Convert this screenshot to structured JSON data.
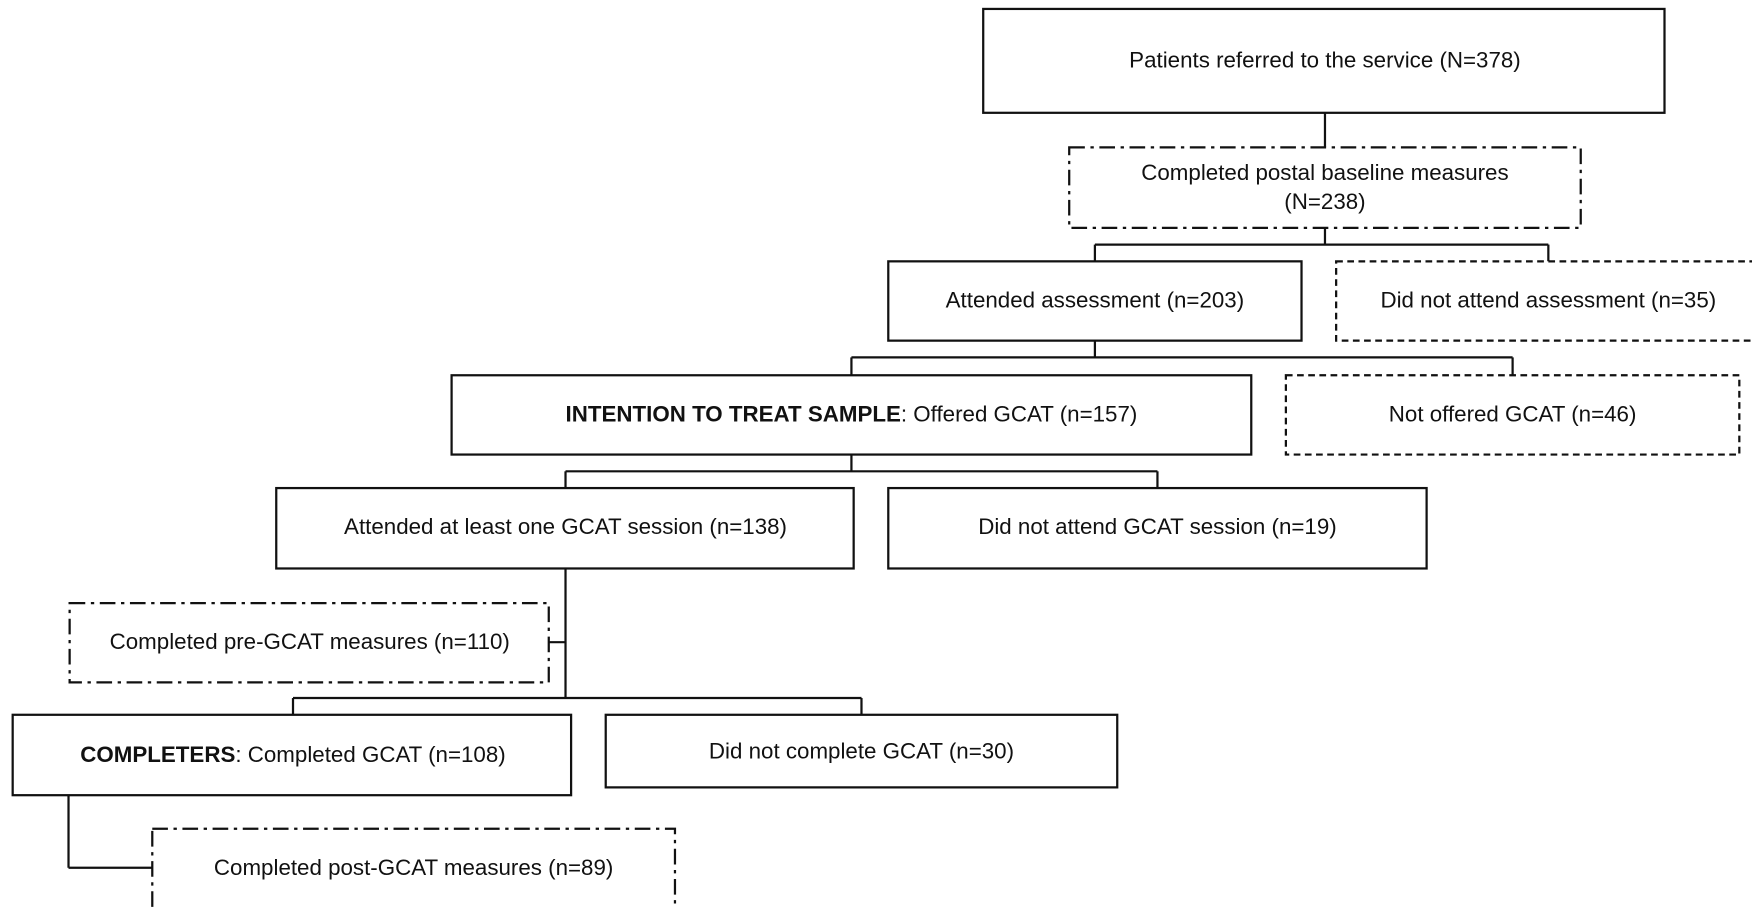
{
  "nodes": [
    {
      "lines": [
        "Patients referred to the service (N=378)"
      ]
    },
    {
      "lines": [
        "Completed postal baseline measures",
        "(N=238)"
      ]
    },
    {
      "lines": [
        "Attended assessment (n=203)"
      ]
    },
    {
      "lines": [
        "Did not attend assessment (n=35)"
      ]
    },
    {
      "bold": "INTENTION TO TREAT SAMPLE",
      "text": ": Offered GCAT (n=157)"
    },
    {
      "lines": [
        "Not offered GCAT (n=46)"
      ]
    },
    {
      "lines": [
        "Attended at least one GCAT session (n=138)"
      ]
    },
    {
      "lines": [
        "Did not attend GCAT session (n=19)"
      ]
    },
    {
      "lines": [
        "Completed pre-GCAT measures (n=110)"
      ]
    },
    {
      "bold": "COMPLETERS",
      "text": ": Completed GCAT (n=108)"
    },
    {
      "lines": [
        "Did not complete GCAT (n=30)"
      ]
    },
    {
      "lines": [
        "Completed post-GCAT measures (n=89)"
      ]
    }
  ]
}
